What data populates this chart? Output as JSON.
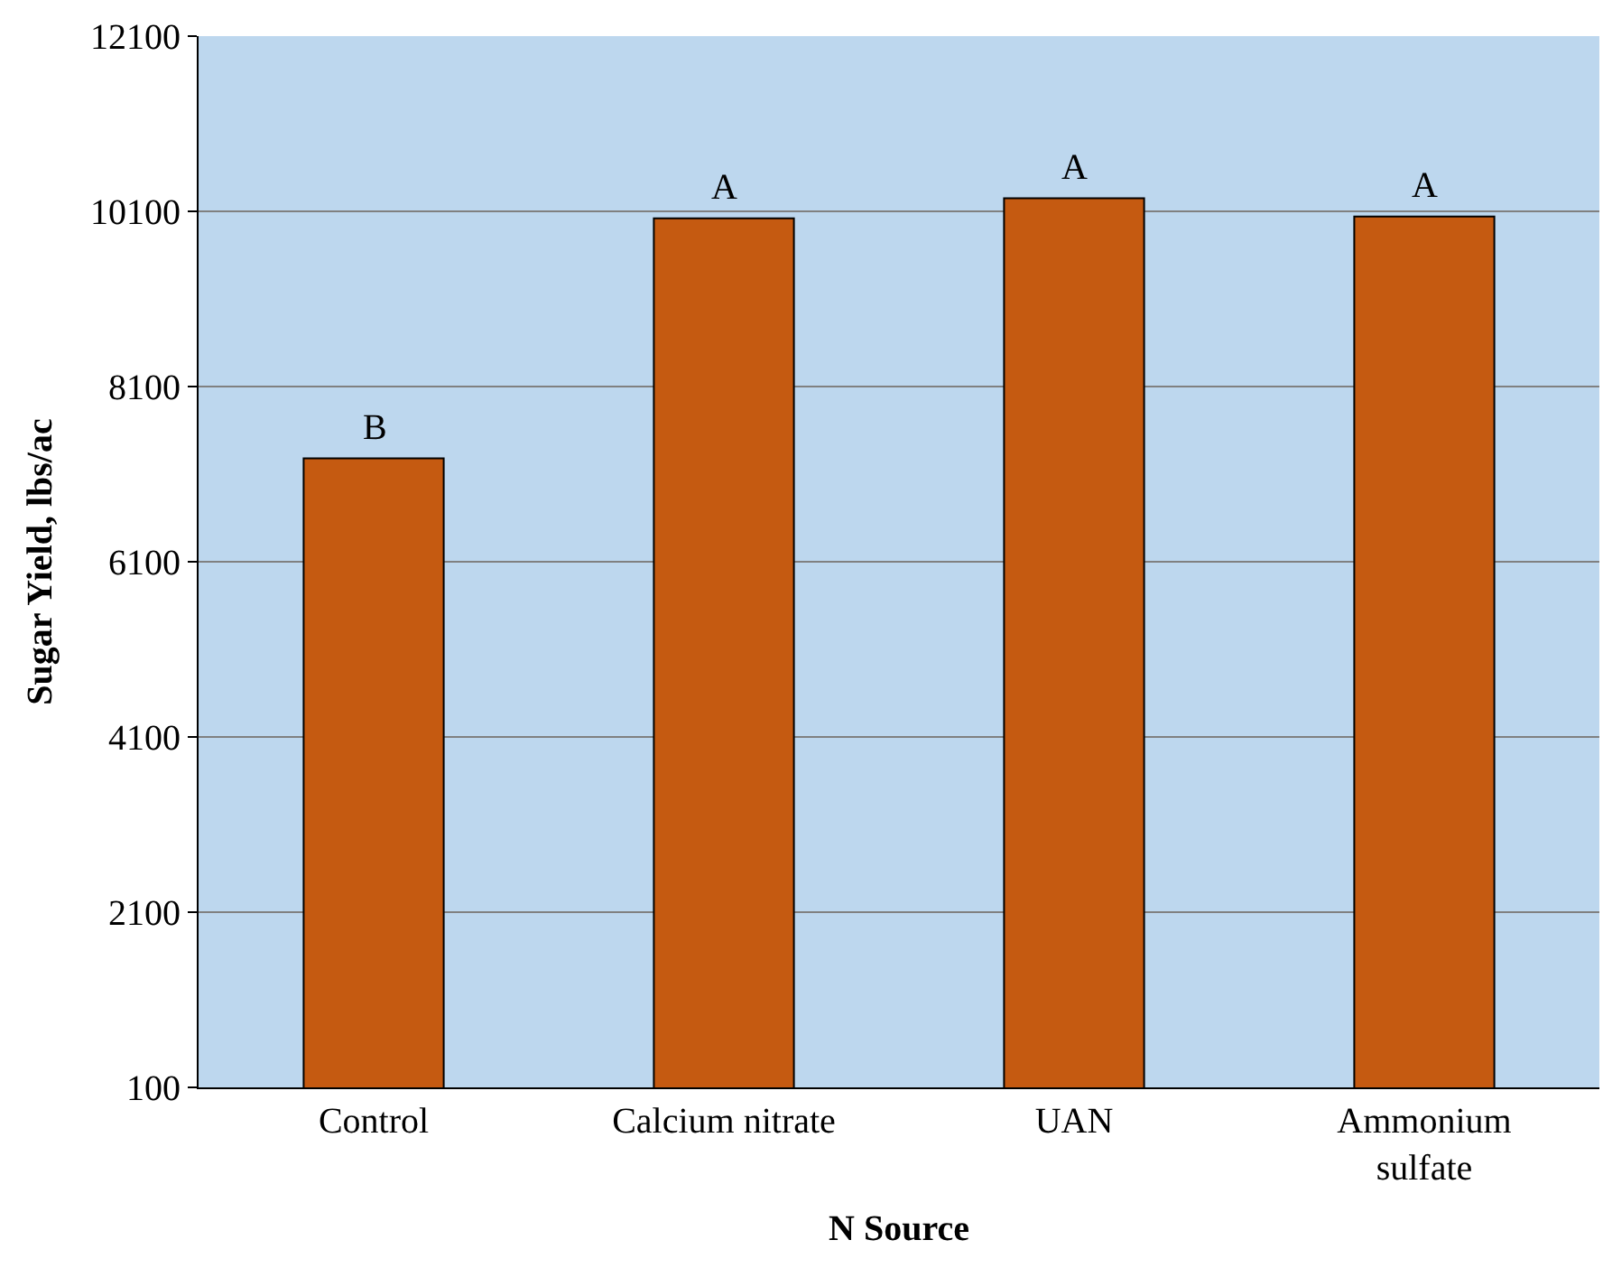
{
  "chart_data": {
    "type": "bar",
    "xlabel": "N Source",
    "ylabel": "Sugar Yield, lbs/ac",
    "categories": [
      "Control",
      "Calcium nitrate",
      "UAN",
      "Ammonium\nsulfate"
    ],
    "values": [
      7280,
      10020,
      10250,
      10040
    ],
    "color": "#c55a11",
    "ylim": [
      100,
      12100
    ],
    "yticks": [
      100,
      2100,
      4100,
      6100,
      8100,
      10100,
      12100
    ],
    "grid": "y",
    "annotations": [
      {
        "text": "B",
        "x": "Control",
        "y": 7280
      },
      {
        "text": "A",
        "x": "Calcium nitrate",
        "y": 10020
      },
      {
        "text": "A",
        "x": "UAN",
        "y": 10250
      },
      {
        "text": "A",
        "x": "Ammonium\nsulfate",
        "y": 10040
      }
    ]
  }
}
